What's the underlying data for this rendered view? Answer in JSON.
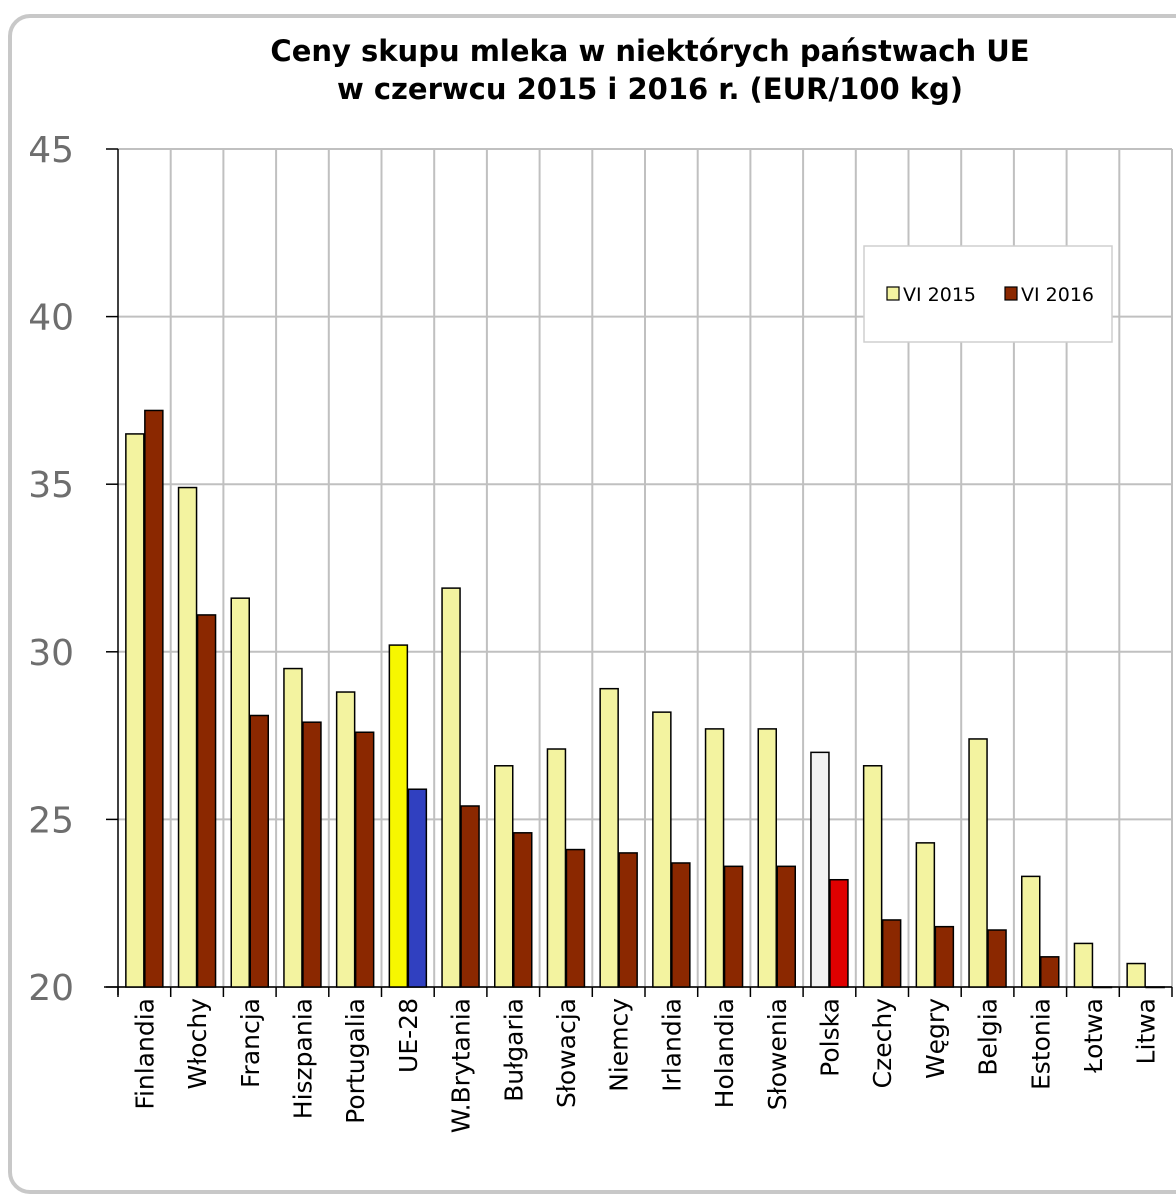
{
  "chart_data": {
    "type": "bar",
    "title_line1": "Ceny skupu mleka w niektórych państwach UE",
    "title_line2": "w czerwcu 2015 i 2016 r. (EUR/100 kg)",
    "categories": [
      "Finlandia",
      "Włochy",
      "Francja",
      "Hiszpania",
      "Portugalia",
      "UE-28",
      "W.Brytania",
      "Bułgaria",
      "Słowacja",
      "Niemcy",
      "Irlandia",
      "Holandia",
      "Słowenia",
      "Polska",
      "Czechy",
      "Węgry",
      "Belgia",
      "Estonia",
      "Łotwa",
      "Litwa"
    ],
    "series": [
      {
        "name": "VI 2015",
        "color": "#f3f3a0",
        "values": [
          36.5,
          34.9,
          31.6,
          29.5,
          28.8,
          30.2,
          31.9,
          26.6,
          27.1,
          28.9,
          28.2,
          27.7,
          27.7,
          27.0,
          26.6,
          24.3,
          27.4,
          23.3,
          21.3,
          20.7
        ]
      },
      {
        "name": "VI 2016",
        "color": "#8b2800",
        "values": [
          37.2,
          31.1,
          28.1,
          27.9,
          27.6,
          25.9,
          25.4,
          24.6,
          24.1,
          24.0,
          23.7,
          23.6,
          23.6,
          23.2,
          22.0,
          21.8,
          21.7,
          20.9,
          20.0,
          20.0
        ]
      }
    ],
    "highlights": [
      {
        "category": "UE-28",
        "series": "VI 2015",
        "color": "#f7f700"
      },
      {
        "category": "UE-28",
        "series": "VI 2016",
        "color": "#3040c0"
      },
      {
        "category": "Polska",
        "series": "VI 2015",
        "color": "#f2f2f2"
      },
      {
        "category": "Polska",
        "series": "VI 2016",
        "color": "#e00000"
      }
    ],
    "ylim": [
      20,
      45
    ],
    "yticks": [
      20,
      25,
      30,
      35,
      40,
      45
    ],
    "grid": true,
    "legend_position": "top-right",
    "xlabel": "",
    "ylabel": ""
  }
}
